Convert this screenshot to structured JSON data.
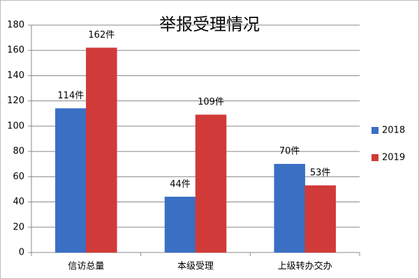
{
  "chart_data": {
    "type": "bar",
    "title": "举报受理情况",
    "categories": [
      "信访总量",
      "本级受理",
      "上级转办交办"
    ],
    "series": [
      {
        "name": "2018",
        "color": "#3a6fc4",
        "values": [
          114,
          44,
          70
        ],
        "value_labels": [
          "114件",
          "44件",
          "70件"
        ]
      },
      {
        "name": "2019",
        "color": "#d03a38",
        "values": [
          162,
          109,
          53
        ],
        "value_labels": [
          "162件",
          "109件",
          "53件"
        ]
      }
    ],
    "ylim": [
      0,
      180
    ],
    "yticks": [
      0,
      20,
      40,
      60,
      80,
      100,
      120,
      140,
      160,
      180
    ],
    "grid": true,
    "legend": "right"
  }
}
